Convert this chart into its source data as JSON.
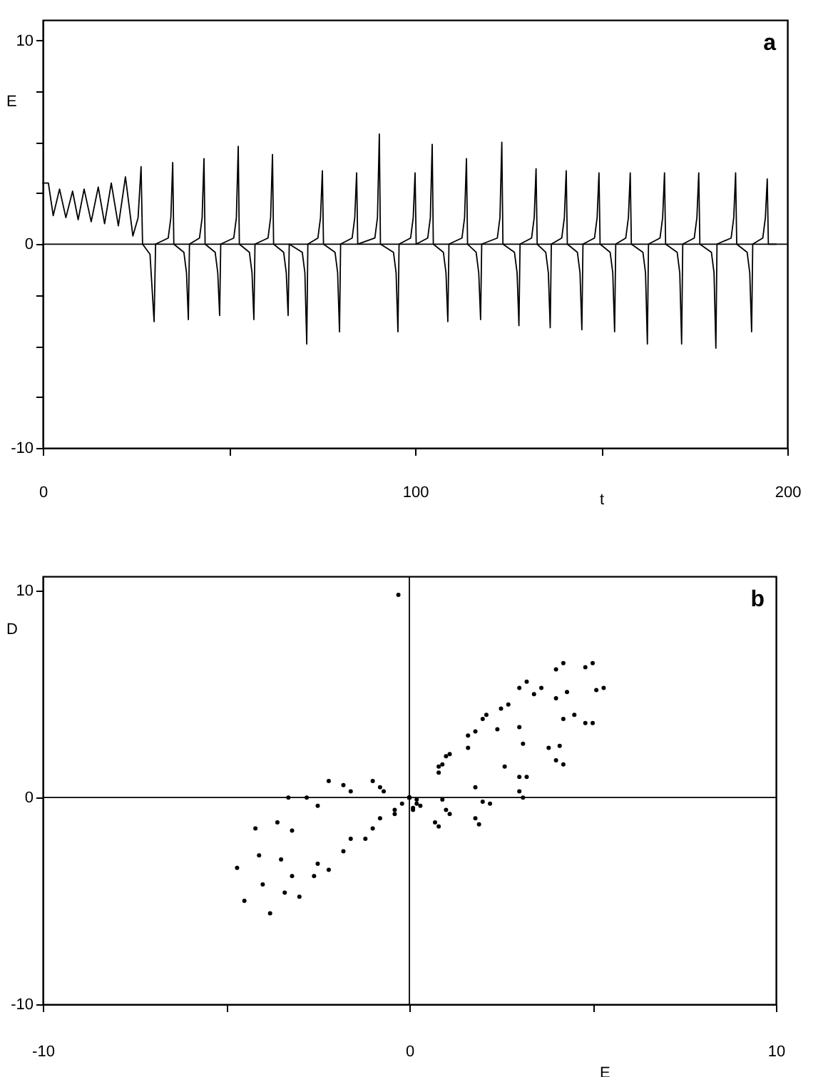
{
  "chart_data": [
    {
      "type": "line",
      "xlabel": "t",
      "ylabel": "E",
      "annotations": [
        "a"
      ],
      "xlim": [
        0,
        200
      ],
      "ylim": [
        -10,
        11
      ],
      "xticks": [
        0,
        {
          "value": 50,
          "label": null
        },
        100,
        {
          "value": 150,
          "label": null
        },
        200
      ],
      "yticks": [
        -10,
        {
          "value": -7.5,
          "label": null
        },
        {
          "value": -5,
          "label": null
        },
        {
          "value": -2.5,
          "label": null
        },
        0,
        {
          "value": 2.5,
          "label": null
        },
        {
          "value": 5,
          "label": null
        },
        {
          "value": 7.5,
          "label": null
        },
        10
      ],
      "ref_lines": [
        {
          "axis": "y",
          "value": 0,
          "color": "#000000"
        }
      ],
      "series": [
        {
          "color": "#000000",
          "x": [
            0,
            1.5,
            2.8,
            4.5,
            6.2,
            8.0,
            9.5,
            11.1,
            13.0,
            14.9,
            16.6,
            18.4,
            20.3,
            22.2,
            24.2,
            25.6,
            26.4,
            26.8,
            28.8,
            29.9,
            30.3,
            33.7,
            34.4,
            34.9,
            35.2,
            37.9,
            38.6,
            39.1,
            39.4,
            42.1,
            42.8,
            43.3,
            43.6,
            46.3,
            47.0,
            47.5,
            47.8,
            51.3,
            52.0,
            52.5,
            52.8,
            55.5,
            56.2,
            56.7,
            57.0,
            60.5,
            61.2,
            61.7,
            62.0,
            64.7,
            65.4,
            65.9,
            66.2,
            69.7,
            70.4,
            70.9,
            71.2,
            73.9,
            74.6,
            75.1,
            75.4,
            78.5,
            79.2,
            79.7,
            80.0,
            83.1,
            83.8,
            84.3,
            84.6,
            89.2,
            89.9,
            90.4,
            90.7,
            94.2,
            94.9,
            95.4,
            95.7,
            98.8,
            99.5,
            100.0,
            100.3,
            103.4,
            104.1,
            104.6,
            104.9,
            107.6,
            108.3,
            108.8,
            109.1,
            112.6,
            113.3,
            113.8,
            114.1,
            116.4,
            117.1,
            117.6,
            117.9,
            122.1,
            122.8,
            123.3,
            123.6,
            126.7,
            127.4,
            127.9,
            128.2,
            131.3,
            132.0,
            132.5,
            132.8,
            135.1,
            135.8,
            136.3,
            136.6,
            139.4,
            140.1,
            140.6,
            140.9,
            143.6,
            144.3,
            144.8,
            145.1,
            148.2,
            148.9,
            149.4,
            149.7,
            152.4,
            153.1,
            153.6,
            153.9,
            156.6,
            157.3,
            157.8,
            158.1,
            161.2,
            161.9,
            162.4,
            162.7,
            165.8,
            166.5,
            167.0,
            167.3,
            170.4,
            171.1,
            171.6,
            171.9,
            175.0,
            175.7,
            176.2,
            176.5,
            179.6,
            180.3,
            180.8,
            181.1,
            184.9,
            185.6,
            186.1,
            186.4,
            189.2,
            189.9,
            190.4,
            190.7,
            193.4,
            194.1,
            194.6,
            194.9,
            197
          ],
          "values": [
            3.0,
            3.0,
            1.4,
            2.7,
            1.3,
            2.6,
            1.2,
            2.7,
            1.1,
            2.8,
            1.0,
            3.0,
            0.9,
            3.3,
            0.4,
            1.3,
            3.8,
            0,
            -0.5,
            -3.8,
            0,
            0.3,
            1.3,
            4.0,
            0,
            -0.4,
            -1.4,
            -3.7,
            0,
            0.3,
            1.3,
            4.2,
            0,
            -0.4,
            -1.4,
            -3.5,
            0,
            0.3,
            1.3,
            4.8,
            0,
            -0.4,
            -1.4,
            -3.7,
            0,
            0.3,
            1.3,
            4.4,
            0,
            -0.4,
            -1.4,
            -3.5,
            0,
            -0.4,
            -1.4,
            -4.9,
            0,
            0.3,
            1.3,
            3.6,
            0,
            -0.4,
            -1.4,
            -4.3,
            0,
            0.3,
            1.3,
            3.5,
            0,
            0.3,
            1.3,
            5.4,
            0,
            -0.4,
            -1.4,
            -4.3,
            0,
            0.3,
            1.3,
            3.5,
            0,
            0.3,
            1.3,
            4.9,
            0,
            -0.4,
            -1.4,
            -3.8,
            0,
            0.3,
            1.3,
            4.2,
            0,
            -0.4,
            -1.4,
            -3.7,
            0,
            0.3,
            1.3,
            5.0,
            0,
            -0.4,
            -1.4,
            -4.0,
            0,
            0.3,
            1.3,
            3.7,
            0,
            -0.4,
            -1.4,
            -4.1,
            0,
            0.3,
            1.3,
            3.6,
            0,
            -0.4,
            -1.4,
            -4.2,
            0,
            0.3,
            1.3,
            3.5,
            0,
            -0.4,
            -1.4,
            -4.3,
            0,
            0.3,
            1.3,
            3.5,
            0,
            -0.4,
            -1.4,
            -4.9,
            0,
            0.3,
            1.3,
            3.5,
            0,
            -0.4,
            -1.4,
            -4.9,
            0,
            0.3,
            1.3,
            3.5,
            0,
            -0.4,
            -1.4,
            -5.1,
            0,
            0.3,
            1.3,
            3.5,
            0,
            -0.4,
            -1.4,
            -4.3,
            0,
            0.3,
            1.3,
            3.2,
            0,
            0
          ]
        }
      ]
    },
    {
      "type": "scatter",
      "xlabel": "E",
      "ylabel": "D",
      "annotations": [
        "b"
      ],
      "xlim": [
        -10,
        10
      ],
      "ylim": [
        -10,
        10.7
      ],
      "xticks": [
        -10,
        {
          "value": -5,
          "label": null
        },
        0,
        {
          "value": 5,
          "label": null
        },
        10
      ],
      "yticks": [
        -10,
        0,
        10
      ],
      "ref_lines": [
        {
          "axis": "y",
          "value": 0,
          "color": "#000000"
        },
        {
          "axis": "x",
          "value": 0,
          "color": "#000000"
        }
      ],
      "series": [
        {
          "color": "#000000",
          "x": [
            0,
            0.8,
            1.6,
            2.4,
            3.0,
            3.1,
            2.6,
            1.8,
            0.9,
            0.2,
            0,
            0.8,
            1.6,
            2.5,
            3.4,
            4.0,
            4.2,
            3.8,
            3.0,
            2.0,
            1.0,
            0.2,
            0,
            1.0,
            2.0,
            3.0,
            4.0,
            4.8,
            5.1,
            4.8,
            4.0,
            3.0,
            1.8,
            0.7,
            0.1,
            0,
            -0.8,
            -1.8,
            -2.8,
            -3.6,
            -4.1,
            -4.0,
            -3.4,
            -2.6,
            -1.8,
            -1.0,
            -0.4,
            0,
            0.9,
            1.8,
            2.7,
            3.6,
            4.3,
            4.5,
            4.1,
            3.2,
            2.2,
            1.1,
            0.3,
            0,
            -1.0,
            -2.2,
            -3.3,
            -4.2,
            -4.7,
            -4.5,
            -3.8,
            -3.0,
            -2.2,
            -1.2,
            -0.4,
            0,
            1.1,
            2.1,
            3.2,
            4.2,
            5.0,
            5.3,
            5.0,
            4.2,
            3.1,
            1.9,
            0.8,
            0.1,
            0,
            -0.7,
            -1.6,
            -2.5,
            -3.2,
            -3.5,
            -3.2,
            -2.5,
            -1.6,
            -0.8,
            -0.2,
            0
          ],
          "values": [
            0,
            1.2,
            2.4,
            3.3,
            3.4,
            2.6,
            1.5,
            0.5,
            -0.1,
            -0.1,
            0,
            1.5,
            3.0,
            4.3,
            5.0,
            4.8,
            3.8,
            2.4,
            1.0,
            -0.2,
            -0.6,
            -0.3,
            0,
            2.0,
            3.8,
            5.3,
            6.2,
            6.3,
            5.2,
            3.6,
            1.8,
            0.3,
            -1.0,
            -1.2,
            -0.5,
            0,
            0.5,
            0.6,
            0,
            -1.2,
            -2.8,
            -4.2,
            -4.6,
            -3.8,
            -2.6,
            -1.5,
            -0.6,
            0,
            1.6,
            3.2,
            4.5,
            5.3,
            5.1,
            4.0,
            2.5,
            1.0,
            -0.3,
            -0.8,
            -0.4,
            0,
            0.8,
            0.8,
            0,
            -1.5,
            -3.4,
            -5.0,
            -5.6,
            -4.8,
            -3.5,
            -2.0,
            -0.8,
            0,
            2.1,
            4.0,
            5.6,
            6.5,
            6.5,
            5.3,
            3.6,
            1.6,
            0,
            -1.3,
            -1.4,
            -0.6,
            0,
            0.3,
            0.3,
            -0.4,
            -1.6,
            -3.0,
            -3.8,
            -3.2,
            -2.0,
            -1.0,
            -0.3,
            0
          ]
        },
        {
          "color": "#000000",
          "x": [
            -0.3
          ],
          "values": [
            9.8
          ]
        }
      ]
    }
  ]
}
